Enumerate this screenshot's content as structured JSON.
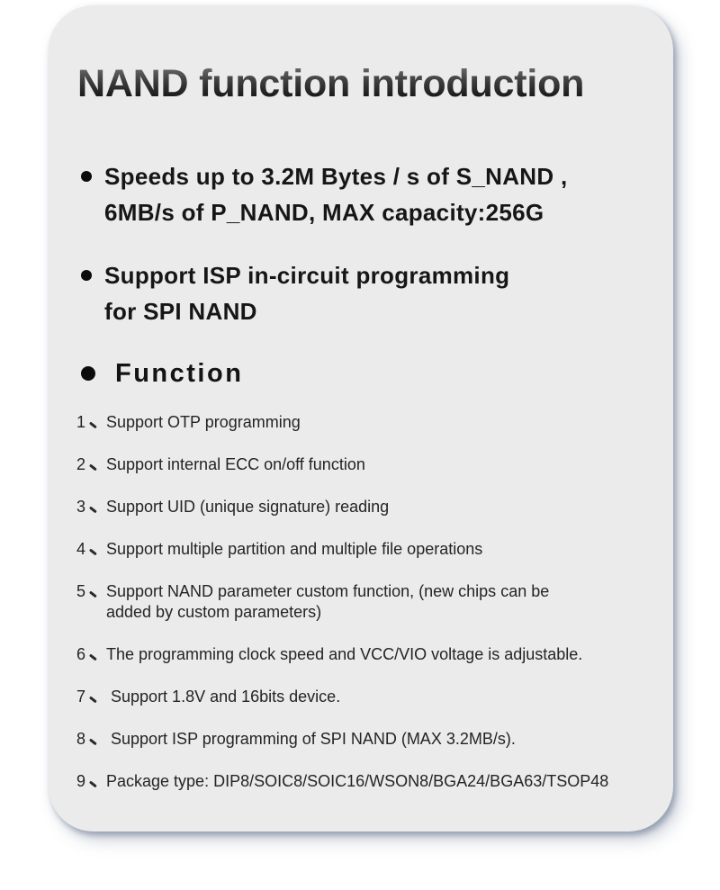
{
  "page": {
    "background": "#ffffff"
  },
  "card": {
    "background": "#ebebeb",
    "shadow_color": "#60708a",
    "title": "NAND function introduction",
    "highlights": [
      {
        "lines": [
          "Speeds up to 3.2M Bytes / s of S_NAND ,",
          "6MB/s of P_NAND, MAX capacity:256G"
        ]
      },
      {
        "lines": [
          "Support ISP in-circuit programming",
          "for SPI NAND"
        ]
      }
    ],
    "section_heading": "Function",
    "list_delimiter": "、",
    "functions": [
      {
        "number": "1",
        "text": "Support OTP programming"
      },
      {
        "number": "2",
        "text": "Support internal ECC on/off function"
      },
      {
        "number": "3",
        "text": "Support UID (unique signature) reading"
      },
      {
        "number": "4",
        "text": "Support multiple partition and multiple file operations"
      },
      {
        "number": "5",
        "text": "Support NAND parameter custom function, (new chips can be\nadded by custom parameters)"
      },
      {
        "number": "6",
        "text": "The programming clock speed and VCC/VIO voltage is adjustable."
      },
      {
        "number": "7",
        "text": " Support 1.8V and 16bits device."
      },
      {
        "number": "8",
        "text": " Support ISP programming of SPI NAND (MAX 3.2MB/s)."
      },
      {
        "number": "9",
        "text": "Package type: DIP8/SOIC8/SOIC16/WSON8/BGA24/BGA63/TSOP48"
      }
    ]
  }
}
